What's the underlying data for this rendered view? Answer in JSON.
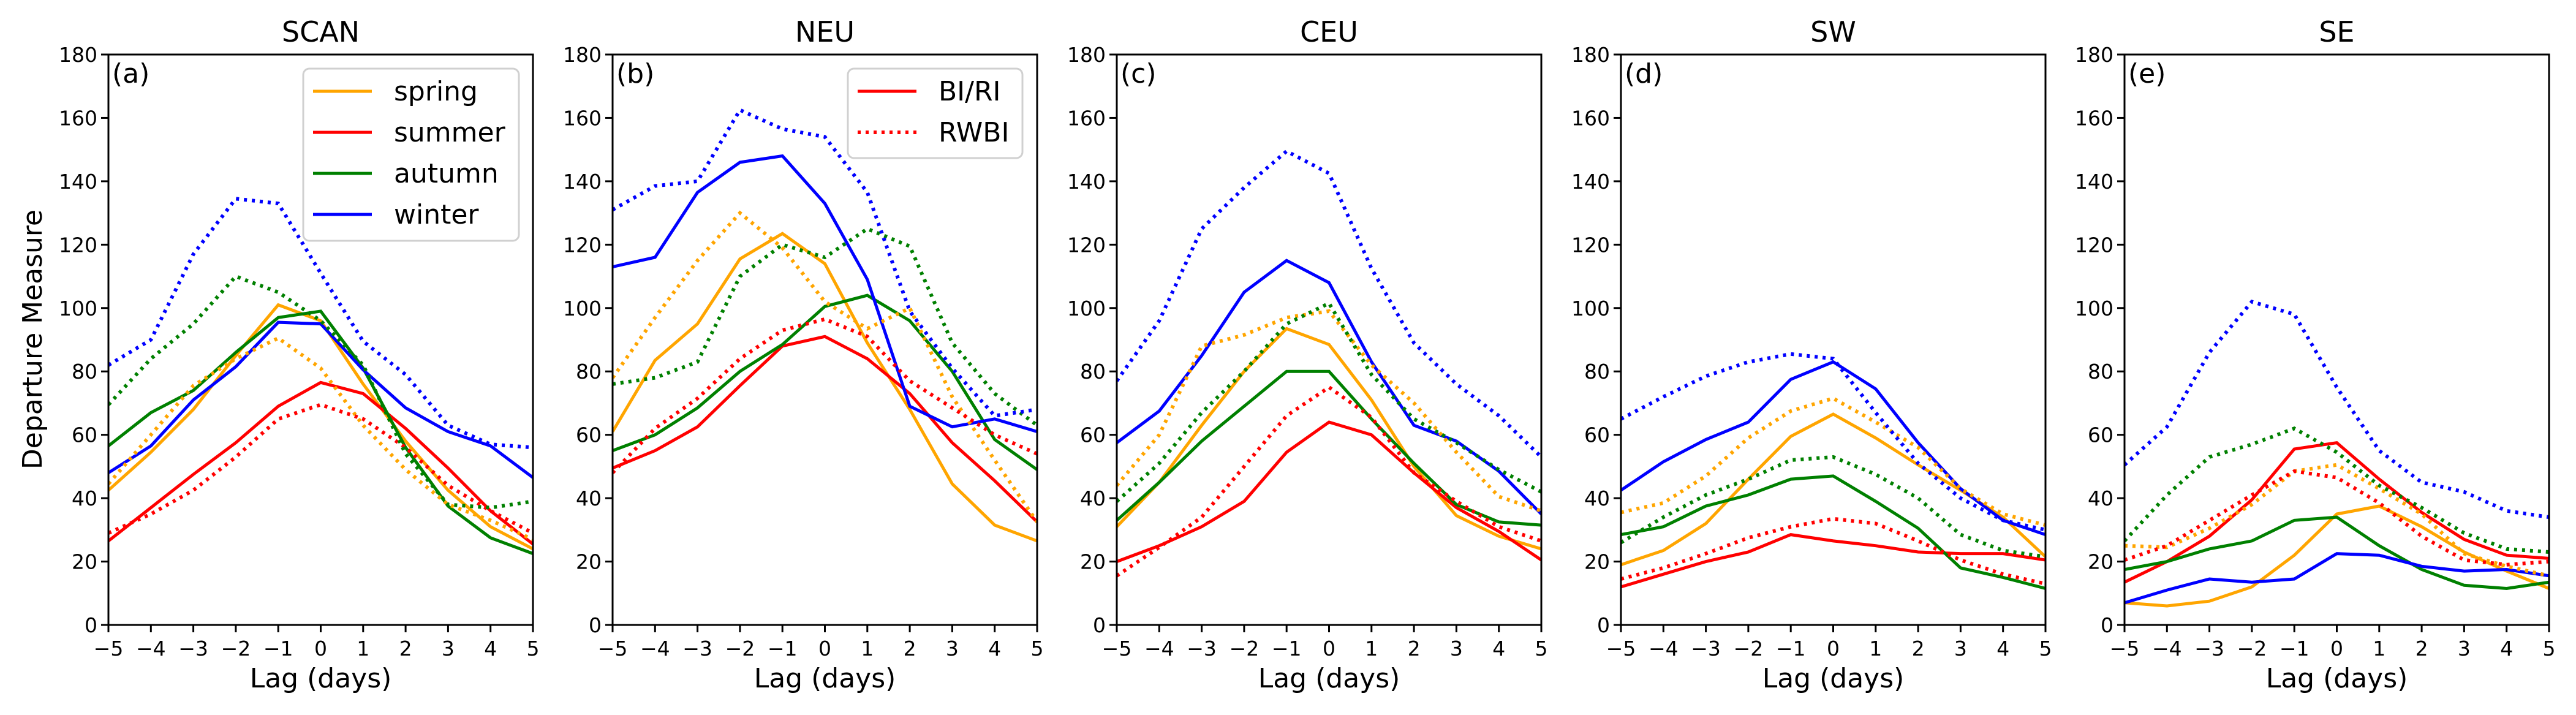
{
  "chart_data": {
    "type": "line",
    "ylabel": "Departure Measure",
    "xlabel": "Lag (days)",
    "x": [
      -5,
      -4,
      -3,
      -2,
      -1,
      0,
      1,
      2,
      3,
      4,
      5
    ],
    "x_ticks": [
      "−5",
      "−4",
      "−3",
      "−2",
      "−1",
      "0",
      "1",
      "2",
      "3",
      "4",
      "5"
    ],
    "xlim": [
      -5,
      5
    ],
    "ylim": [
      0,
      180
    ],
    "y_ticks": [
      0,
      20,
      40,
      60,
      80,
      100,
      120,
      140,
      160,
      180
    ],
    "grid": false,
    "colors": {
      "spring": "#ffa500",
      "summer": "#ff0000",
      "autumn": "#008000",
      "winter": "#0000ff"
    },
    "legends": [
      {
        "panel": 0,
        "placement": "top-right",
        "entries": [
          {
            "label": "spring",
            "color": "#ffa500",
            "style": "solid"
          },
          {
            "label": "summer",
            "color": "#ff0000",
            "style": "solid"
          },
          {
            "label": "autumn",
            "color": "#008000",
            "style": "solid"
          },
          {
            "label": "winter",
            "color": "#0000ff",
            "style": "solid"
          }
        ]
      },
      {
        "panel": 1,
        "placement": "top-right",
        "entries": [
          {
            "label": "BI/RI",
            "color": "#ff0000",
            "style": "solid"
          },
          {
            "label": "RWBI",
            "color": "#ff0000",
            "style": "dotted"
          }
        ]
      }
    ],
    "panels": [
      {
        "title": "SCAN",
        "panel_label": "(a)",
        "series": [
          {
            "name": "spring BI/RI",
            "season": "spring",
            "index": "BI/RI",
            "values": [
              42.5,
              54.5,
              68,
              85,
              101,
              96,
              76,
              58,
              42.5,
              31,
              24
            ]
          },
          {
            "name": "summer BI/RI",
            "season": "summer",
            "index": "BI/RI",
            "values": [
              26.5,
              37,
              47.5,
              57.5,
              69,
              76.5,
              73,
              62,
              49.5,
              36,
              25.5
            ]
          },
          {
            "name": "autumn BI/RI",
            "season": "autumn",
            "index": "BI/RI",
            "values": [
              56.5,
              67,
              74,
              86,
              97,
              99,
              81,
              56,
              37.5,
              27.5,
              22.5
            ]
          },
          {
            "name": "winter BI/RI",
            "season": "winter",
            "index": "BI/RI",
            "values": [
              48,
              56.5,
              71,
              81.5,
              95.5,
              95,
              80.5,
              68.5,
              61,
              56.5,
              46.5
            ]
          },
          {
            "name": "spring RWBI",
            "season": "spring",
            "index": "RWBI",
            "values": [
              44.5,
              60,
              75.5,
              84,
              90.5,
              81,
              63,
              49,
              38,
              33,
              27
            ]
          },
          {
            "name": "summer RWBI",
            "season": "summer",
            "index": "RWBI",
            "values": [
              29,
              35,
              42.5,
              53,
              65,
              69.5,
              65,
              56,
              44,
              36,
              29
            ]
          },
          {
            "name": "autumn RWBI",
            "season": "autumn",
            "index": "RWBI",
            "values": [
              69.5,
              84,
              95,
              110,
              105,
              96,
              82,
              54,
              38,
              37,
              39
            ]
          },
          {
            "name": "winter RWBI",
            "season": "winter",
            "index": "RWBI",
            "values": [
              82,
              90,
              117,
              134.5,
              133,
              111,
              89.5,
              79,
              63,
              57,
              56
            ]
          }
        ]
      },
      {
        "title": "NEU",
        "panel_label": "(b)",
        "series": [
          {
            "name": "spring BI/RI",
            "season": "spring",
            "index": "BI/RI",
            "values": [
              61,
              83.5,
              95,
              115.5,
              123.5,
              114,
              89,
              68,
              44.5,
              31.5,
              26.5
            ]
          },
          {
            "name": "summer BI/RI",
            "season": "summer",
            "index": "BI/RI",
            "values": [
              49.5,
              55,
              62.5,
              75.5,
              88,
              91,
              84,
              73,
              57.5,
              45.5,
              32.5
            ]
          },
          {
            "name": "autumn BI/RI",
            "season": "autumn",
            "index": "BI/RI",
            "values": [
              55,
              60,
              68.5,
              80,
              88.5,
              100.5,
              104,
              96,
              80,
              58.5,
              49
            ]
          },
          {
            "name": "winter BI/RI",
            "season": "winter",
            "index": "BI/RI",
            "values": [
              113,
              116,
              136.5,
              146,
              148,
              133,
              109,
              69,
              62.5,
              65,
              61
            ]
          },
          {
            "name": "spring RWBI",
            "season": "spring",
            "index": "RWBI",
            "values": [
              78,
              97,
              115,
              130,
              119,
              102,
              93.5,
              100,
              72,
              52,
              32.5
            ]
          },
          {
            "name": "summer RWBI",
            "season": "summer",
            "index": "RWBI",
            "values": [
              48,
              62,
              71.5,
              84,
              93,
              96.5,
              91,
              77,
              68.5,
              60,
              54
            ]
          },
          {
            "name": "autumn RWBI",
            "season": "autumn",
            "index": "RWBI",
            "values": [
              76,
              78,
              83,
              110,
              120,
              116,
              125,
              119.5,
              89,
              73,
              63
            ]
          },
          {
            "name": "winter RWBI",
            "season": "winter",
            "index": "RWBI",
            "values": [
              131,
              138.5,
              140,
              162.5,
              156.5,
              154,
              136.5,
              99,
              81,
              66,
              68
            ]
          }
        ]
      },
      {
        "title": "CEU",
        "panel_label": "(c)",
        "series": [
          {
            "name": "spring BI/RI",
            "season": "spring",
            "index": "BI/RI",
            "values": [
              31,
              45,
              63,
              80,
              93.5,
              88.5,
              71,
              50,
              34.5,
              28,
              24
            ]
          },
          {
            "name": "summer BI/RI",
            "season": "summer",
            "index": "BI/RI",
            "values": [
              20,
              25,
              31,
              39,
              54.5,
              64,
              60,
              48,
              37,
              29.5,
              20.5
            ]
          },
          {
            "name": "autumn BI/RI",
            "season": "autumn",
            "index": "BI/RI",
            "values": [
              33,
              45,
              58,
              69,
              80,
              80,
              65,
              51,
              38,
              32.5,
              31.5
            ]
          },
          {
            "name": "winter BI/RI",
            "season": "winter",
            "index": "BI/RI",
            "values": [
              57.5,
              67.5,
              85,
              105,
              115,
              108,
              83,
              63,
              58,
              48.5,
              35
            ]
          },
          {
            "name": "spring RWBI",
            "season": "spring",
            "index": "RWBI",
            "values": [
              44,
              60,
              88,
              91.5,
              97,
              99,
              82,
              70,
              54.5,
              40.5,
              36
            ]
          },
          {
            "name": "summer RWBI",
            "season": "summer",
            "index": "RWBI",
            "values": [
              15.5,
              24.5,
              34,
              50,
              66,
              75,
              65.5,
              48,
              39,
              31,
              26.5
            ]
          },
          {
            "name": "autumn RWBI",
            "season": "autumn",
            "index": "RWBI",
            "values": [
              39,
              51,
              67,
              80,
              95,
              101.5,
              79,
              65,
              57.5,
              49,
              42
            ]
          },
          {
            "name": "winter RWBI",
            "season": "winter",
            "index": "RWBI",
            "values": [
              77,
              96,
              125,
              138,
              149.5,
              142.5,
              112.5,
              89,
              76,
              66,
              53
            ]
          }
        ]
      },
      {
        "title": "SW",
        "panel_label": "(d)",
        "series": [
          {
            "name": "spring BI/RI",
            "season": "spring",
            "index": "BI/RI",
            "values": [
              19,
              23.5,
              32,
              46,
              59.5,
              66.5,
              59,
              50.5,
              42.5,
              34,
              21.5
            ]
          },
          {
            "name": "summer BI/RI",
            "season": "summer",
            "index": "BI/RI",
            "values": [
              12,
              16,
              20,
              23,
              28.5,
              26.5,
              25,
              23,
              22.5,
              22.5,
              20.5
            ]
          },
          {
            "name": "autumn BI/RI",
            "season": "autumn",
            "index": "BI/RI",
            "values": [
              28.5,
              31,
              37.5,
              41,
              46,
              47,
              39,
              30.5,
              18,
              15,
              11.5
            ]
          },
          {
            "name": "winter BI/RI",
            "season": "winter",
            "index": "BI/RI",
            "values": [
              42.5,
              51.5,
              58.5,
              64,
              77.5,
              83,
              74.5,
              57.5,
              43,
              33,
              28.5
            ]
          },
          {
            "name": "spring RWBI",
            "season": "spring",
            "index": "RWBI",
            "values": [
              35.5,
              38.5,
              47,
              59,
              67.5,
              71.5,
              64,
              56,
              43,
              35,
              31.5
            ]
          },
          {
            "name": "summer RWBI",
            "season": "summer",
            "index": "RWBI",
            "values": [
              14.5,
              18,
              22.5,
              27.5,
              31,
              33.5,
              32,
              26.5,
              20.5,
              16,
              13
            ]
          },
          {
            "name": "autumn RWBI",
            "season": "autumn",
            "index": "RWBI",
            "values": [
              26,
              34,
              41,
              46,
              52,
              53,
              47.5,
              40,
              28.5,
              23.5,
              21.5
            ]
          },
          {
            "name": "winter RWBI",
            "season": "winter",
            "index": "RWBI",
            "values": [
              65,
              72,
              78.5,
              83,
              85.5,
              84,
              67,
              51,
              40,
              33,
              30
            ]
          }
        ]
      },
      {
        "title": "SE",
        "panel_label": "(e)",
        "series": [
          {
            "name": "spring BI/RI",
            "season": "spring",
            "index": "BI/RI",
            "values": [
              7,
              6,
              7.5,
              12,
              22,
              35,
              37.5,
              31,
              23,
              17,
              11.5
            ]
          },
          {
            "name": "summer BI/RI",
            "season": "summer",
            "index": "BI/RI",
            "values": [
              13.5,
              20,
              28,
              39.5,
              55.5,
              57.5,
              46,
              35.5,
              27,
              22,
              21
            ]
          },
          {
            "name": "autumn BI/RI",
            "season": "autumn",
            "index": "BI/RI",
            "values": [
              17.5,
              20,
              24,
              26.5,
              33,
              34,
              25,
              17.5,
              12.5,
              11.5,
              13.5
            ]
          },
          {
            "name": "winter BI/RI",
            "season": "winter",
            "index": "BI/RI",
            "values": [
              7,
              11,
              14.5,
              13.5,
              14.5,
              22.5,
              22,
              18.5,
              17,
              17.5,
              15.5
            ]
          },
          {
            "name": "spring RWBI",
            "season": "spring",
            "index": "RWBI",
            "values": [
              25,
              24.5,
              30.5,
              38,
              48.5,
              50.5,
              43,
              35,
              22.5,
              18.5,
              15.5
            ]
          },
          {
            "name": "summer RWBI",
            "season": "summer",
            "index": "RWBI",
            "values": [
              20.5,
              25,
              33,
              41,
              48.5,
              46.5,
              38.5,
              28,
              20.5,
              19,
              20
            ]
          },
          {
            "name": "autumn RWBI",
            "season": "autumn",
            "index": "RWBI",
            "values": [
              26.5,
              41,
              53,
              57,
              62,
              54.5,
              44,
              37,
              29,
              24,
              23
            ]
          },
          {
            "name": "winter RWBI",
            "season": "winter",
            "index": "RWBI",
            "values": [
              50.5,
              62.5,
              86,
              102,
              98,
              75,
              55,
              45,
              42,
              36,
              34
            ]
          }
        ]
      }
    ]
  }
}
